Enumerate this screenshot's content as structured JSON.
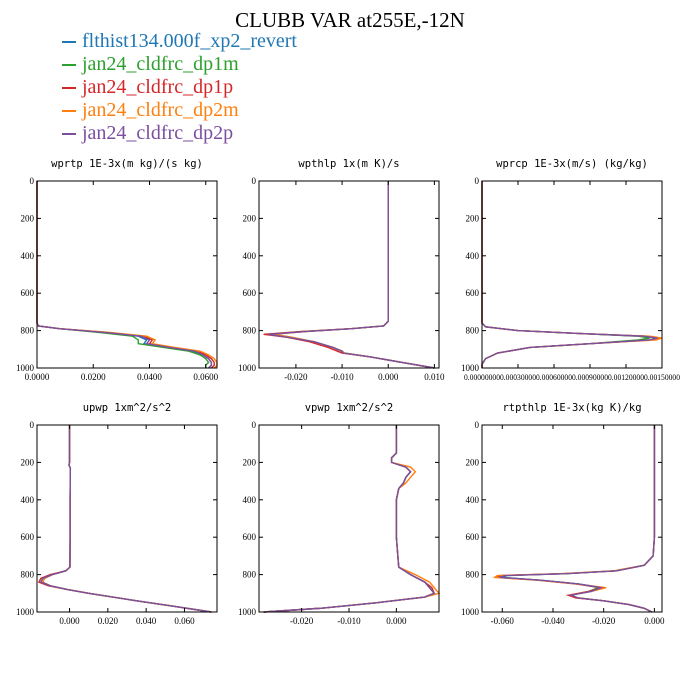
{
  "title": "CLUBB VAR at255E,-12N",
  "legend": [
    {
      "name": "flthist134.000f_xp2_revert",
      "color": "#1f77b4"
    },
    {
      "name": "jan24_cldfrc_dp1m",
      "color": "#2ca02c"
    },
    {
      "name": "jan24_cldfrc_dp1p",
      "color": "#d62728"
    },
    {
      "name": "jan24_cldfrc_dp2m",
      "color": "#ff7f0e"
    },
    {
      "name": "jan24_cldfrc_dp2p",
      "color": "#7b4fa0"
    }
  ],
  "chart_data": [
    {
      "type": "line",
      "title": "wprtp  1E-3x(m kg)/(s kg)",
      "xlim": [
        0,
        0.064
      ],
      "ylim": [
        0,
        1000
      ],
      "y_reversed": true,
      "xticks": [
        "0.0000",
        "0.0200",
        "0.0400",
        "0.0600"
      ],
      "xtick_values": [
        0,
        0.02,
        0.04,
        0.06
      ],
      "yticks": [
        "0",
        "200",
        "400",
        "600",
        "800",
        "1000"
      ],
      "y": [
        0,
        200,
        400,
        600,
        760,
        775,
        790,
        810,
        830,
        850,
        870,
        890,
        910,
        930,
        950,
        970,
        985,
        1000
      ],
      "series": [
        {
          "x": [
            0,
            0,
            0,
            0,
            0,
            0.0005,
            0.008,
            0.024,
            0.036,
            0.039,
            0.038,
            0.046,
            0.055,
            0.059,
            0.061,
            0.062,
            0.062,
            0.061
          ]
        },
        {
          "x": [
            0,
            0,
            0,
            0,
            0,
            0.0005,
            0.008,
            0.022,
            0.034,
            0.036,
            0.036,
            0.045,
            0.054,
            0.058,
            0.06,
            0.061,
            0.06,
            0.06
          ]
        },
        {
          "x": [
            0,
            0,
            0,
            0,
            0,
            0.0005,
            0.008,
            0.025,
            0.038,
            0.041,
            0.04,
            0.048,
            0.057,
            0.06,
            0.062,
            0.063,
            0.063,
            0.062
          ]
        },
        {
          "x": [
            0,
            0,
            0,
            0,
            0,
            0.0005,
            0.008,
            0.026,
            0.039,
            0.042,
            0.041,
            0.049,
            0.058,
            0.061,
            0.063,
            0.064,
            0.064,
            0.063
          ]
        },
        {
          "x": [
            0,
            0,
            0,
            0,
            0,
            0.0005,
            0.008,
            0.024,
            0.037,
            0.04,
            0.039,
            0.047,
            0.056,
            0.059,
            0.061,
            0.062,
            0.062,
            0.061
          ]
        }
      ]
    },
    {
      "type": "line",
      "title": "wpthlp  1x(m K)/s",
      "xlim": [
        -0.028,
        0.011
      ],
      "ylim": [
        0,
        1000
      ],
      "y_reversed": true,
      "xticks": [
        "-0.020",
        "-0.010",
        "0.000",
        "0.010"
      ],
      "xtick_values": [
        -0.02,
        -0.01,
        0,
        0.01
      ],
      "yticks": [
        "0",
        "200",
        "400",
        "600",
        "800",
        "1000"
      ],
      "y": [
        0,
        300,
        600,
        750,
        775,
        790,
        805,
        820,
        835,
        860,
        890,
        910,
        920,
        940,
        970,
        1000
      ],
      "series": [
        {
          "x": [
            0,
            0,
            0,
            0,
            -0.001,
            -0.008,
            -0.018,
            -0.025,
            -0.021,
            -0.016,
            -0.012,
            -0.01,
            -0.0095,
            -0.004,
            0.003,
            0.01
          ]
        },
        {
          "x": [
            0,
            0,
            0,
            0,
            -0.001,
            -0.008,
            -0.019,
            -0.026,
            -0.022,
            -0.016,
            -0.012,
            -0.01,
            -0.0095,
            -0.004,
            0.003,
            0.01
          ]
        },
        {
          "x": [
            0,
            0,
            0,
            0,
            -0.001,
            -0.008,
            -0.019,
            -0.027,
            -0.022,
            -0.017,
            -0.013,
            -0.011,
            -0.01,
            -0.004,
            0.003,
            0.01
          ]
        },
        {
          "x": [
            0,
            0,
            0,
            0,
            -0.001,
            -0.008,
            -0.018,
            -0.025,
            -0.021,
            -0.016,
            -0.012,
            -0.01,
            -0.0095,
            -0.004,
            0.003,
            0.01
          ]
        },
        {
          "x": [
            0,
            0,
            0,
            0,
            -0.001,
            -0.008,
            -0.018,
            -0.026,
            -0.022,
            -0.016,
            -0.012,
            -0.01,
            -0.0098,
            -0.004,
            0.003,
            0.01
          ]
        }
      ]
    },
    {
      "type": "line",
      "title": "wprcp  1E-3x(m/s) (kg/kg)",
      "xlim": [
        0,
        0.0015
      ],
      "ylim": [
        0,
        1000
      ],
      "y_reversed": true,
      "xticks": [
        "0.00000000",
        "0.00030000",
        "0.00060000",
        "0.00090000",
        "0.00120000",
        "0.00150000"
      ],
      "xtick_values": [
        0,
        0.0003,
        0.0006,
        0.0009,
        0.0012,
        0.0015
      ],
      "yticks": [
        "0",
        "200",
        "400",
        "600",
        "800",
        "1000"
      ],
      "y": [
        0,
        300,
        600,
        760,
        780,
        800,
        815,
        830,
        840,
        850,
        870,
        890,
        920,
        950,
        980,
        1000
      ],
      "series": [
        {
          "x": [
            0,
            0,
            0,
            0,
            3e-05,
            0.0003,
            0.0008,
            0.00135,
            0.00145,
            0.0014,
            0.0009,
            0.0004,
            0.00013,
            3e-05,
            0,
            0
          ]
        },
        {
          "x": [
            0,
            0,
            0,
            0,
            3e-05,
            0.0003,
            0.0008,
            0.0013,
            0.0014,
            0.0013,
            0.0009,
            0.0004,
            0.00013,
            3e-05,
            0,
            0
          ]
        },
        {
          "x": [
            0,
            0,
            0,
            0,
            3e-05,
            0.0003,
            0.0008,
            0.00137,
            0.00147,
            0.0014,
            0.0009,
            0.0004,
            0.00013,
            3e-05,
            0,
            0
          ]
        },
        {
          "x": [
            0,
            0,
            0,
            0,
            3e-05,
            0.0003,
            0.0008,
            0.0014,
            0.0015,
            0.00145,
            0.0009,
            0.0004,
            0.00013,
            3e-05,
            0,
            0
          ]
        },
        {
          "x": [
            0,
            0,
            0,
            0,
            3e-05,
            0.0003,
            0.0008,
            0.00135,
            0.00146,
            0.0014,
            0.0009,
            0.0004,
            0.00013,
            3e-05,
            0,
            0
          ]
        }
      ]
    },
    {
      "type": "line",
      "title": "upwp  1xm^2/s^2",
      "xlim": [
        -0.017,
        0.077
      ],
      "ylim": [
        0,
        1000
      ],
      "y_reversed": true,
      "xticks": [
        "0.000",
        "0.020",
        "0.040",
        "0.060"
      ],
      "xtick_values": [
        0,
        0.02,
        0.04,
        0.06
      ],
      "yticks": [
        "0",
        "200",
        "400",
        "600",
        "800",
        "1000"
      ],
      "y": [
        0,
        200,
        215,
        230,
        400,
        600,
        760,
        780,
        800,
        820,
        840,
        860,
        880,
        900,
        940,
        970,
        1000
      ],
      "series": [
        {
          "x": [
            0,
            0,
            -0.0003,
            0.0004,
            0.0003,
            0.0003,
            0.0002,
            -0.002,
            -0.009,
            -0.013,
            -0.014,
            -0.01,
            -0.001,
            0.01,
            0.035,
            0.055,
            0.074
          ]
        },
        {
          "x": [
            0,
            0,
            -0.0003,
            0.0004,
            0.0003,
            0.0003,
            0.0002,
            -0.002,
            -0.009,
            -0.014,
            -0.015,
            -0.01,
            -0.001,
            0.01,
            0.035,
            0.055,
            0.074
          ]
        },
        {
          "x": [
            0,
            0,
            -0.0003,
            0.0004,
            0.0003,
            0.0003,
            0.0002,
            -0.002,
            -0.01,
            -0.015,
            -0.016,
            -0.011,
            -0.001,
            0.01,
            0.035,
            0.055,
            0.074
          ]
        },
        {
          "x": [
            0,
            0,
            -0.0003,
            0.0004,
            0.0003,
            0.0003,
            0.0002,
            -0.002,
            -0.009,
            -0.013,
            -0.014,
            -0.01,
            -0.001,
            0.01,
            0.035,
            0.055,
            0.074
          ]
        },
        {
          "x": [
            0,
            0,
            -0.0003,
            0.0004,
            0.0003,
            0.0003,
            0.0002,
            -0.002,
            -0.009,
            -0.014,
            -0.015,
            -0.01,
            -0.001,
            0.01,
            0.035,
            0.055,
            0.074
          ]
        }
      ]
    },
    {
      "type": "line",
      "title": "vpwp  1xm^2/s^2",
      "xlim": [
        -0.029,
        0.009
      ],
      "ylim": [
        0,
        1000
      ],
      "y_reversed": true,
      "xticks": [
        "-0.020",
        "-0.010",
        "0.000"
      ],
      "xtick_values": [
        -0.02,
        -0.01,
        0
      ],
      "yticks": [
        "0",
        "200",
        "400",
        "600",
        "800",
        "1000"
      ],
      "y": [
        0,
        150,
        175,
        200,
        225,
        250,
        280,
        310,
        340,
        400,
        600,
        760,
        800,
        840,
        870,
        900,
        920,
        950,
        980,
        1000
      ],
      "series": [
        {
          "x": [
            0,
            0,
            -0.001,
            -0.001,
            0.002,
            0.003,
            0.002,
            0.0015,
            0.0005,
            0,
            0,
            0.0005,
            0.003,
            0.006,
            0.007,
            0.008,
            0.006,
            -0.004,
            -0.016,
            -0.028
          ]
        },
        {
          "x": [
            0,
            0,
            -0.001,
            -0.001,
            0.002,
            0.003,
            0.002,
            0.0015,
            0.0005,
            0,
            0,
            0.0005,
            0.003,
            0.006,
            0.007,
            0.008,
            0.006,
            -0.004,
            -0.016,
            -0.028
          ]
        },
        {
          "x": [
            0,
            0,
            -0.001,
            -0.001,
            0.002,
            0.003,
            0.002,
            0.0015,
            0.0005,
            0,
            0,
            0.0005,
            0.003,
            0.006,
            0.0075,
            0.008,
            0.006,
            -0.004,
            -0.016,
            -0.028
          ]
        },
        {
          "x": [
            0,
            0,
            -0.001,
            -0.001,
            0.003,
            0.004,
            0.003,
            0.002,
            0.0005,
            0,
            0,
            0.0005,
            0.004,
            0.007,
            0.008,
            0.009,
            0.006,
            -0.004,
            -0.016,
            -0.028
          ]
        },
        {
          "x": [
            0,
            0,
            -0.001,
            -0.001,
            0.002,
            0.003,
            0.002,
            0.0015,
            0.0005,
            0,
            0,
            0.0005,
            0.003,
            0.006,
            0.007,
            0.008,
            0.006,
            -0.004,
            -0.016,
            -0.028
          ]
        }
      ]
    },
    {
      "type": "line",
      "title": "rtpthlp  1E-3x(kg K)/kg",
      "xlim": [
        -0.068,
        0.003
      ],
      "ylim": [
        0,
        1000
      ],
      "y_reversed": true,
      "xticks": [
        "-0.060",
        "-0.040",
        "-0.020",
        "0.000"
      ],
      "xtick_values": [
        -0.06,
        -0.04,
        -0.02,
        0
      ],
      "yticks": [
        "0",
        "200",
        "400",
        "600",
        "800",
        "1000"
      ],
      "y": [
        0,
        400,
        600,
        700,
        750,
        780,
        795,
        805,
        815,
        830,
        850,
        870,
        890,
        910,
        925,
        940,
        960,
        980,
        1000
      ],
      "series": [
        {
          "x": [
            0,
            0,
            0,
            -0.0005,
            -0.004,
            -0.015,
            -0.035,
            -0.058,
            -0.06,
            -0.045,
            -0.03,
            -0.02,
            -0.025,
            -0.033,
            -0.03,
            -0.02,
            -0.01,
            -0.004,
            -0.001
          ]
        },
        {
          "x": [
            0,
            0,
            0,
            -0.0005,
            -0.004,
            -0.015,
            -0.035,
            -0.06,
            -0.061,
            -0.045,
            -0.03,
            -0.022,
            -0.026,
            -0.033,
            -0.03,
            -0.02,
            -0.01,
            -0.004,
            -0.001
          ]
        },
        {
          "x": [
            0,
            0,
            0,
            -0.0005,
            -0.004,
            -0.015,
            -0.036,
            -0.061,
            -0.062,
            -0.046,
            -0.031,
            -0.021,
            -0.026,
            -0.034,
            -0.031,
            -0.02,
            -0.01,
            -0.004,
            -0.001
          ]
        },
        {
          "x": [
            0,
            0,
            0,
            -0.0005,
            -0.004,
            -0.016,
            -0.037,
            -0.062,
            -0.063,
            -0.046,
            -0.031,
            -0.019,
            -0.025,
            -0.033,
            -0.03,
            -0.02,
            -0.01,
            -0.004,
            -0.001
          ]
        },
        {
          "x": [
            0,
            0,
            0,
            -0.0005,
            -0.004,
            -0.015,
            -0.035,
            -0.059,
            -0.061,
            -0.045,
            -0.03,
            -0.021,
            -0.025,
            -0.033,
            -0.03,
            -0.02,
            -0.01,
            -0.004,
            -0.001
          ]
        }
      ]
    }
  ]
}
